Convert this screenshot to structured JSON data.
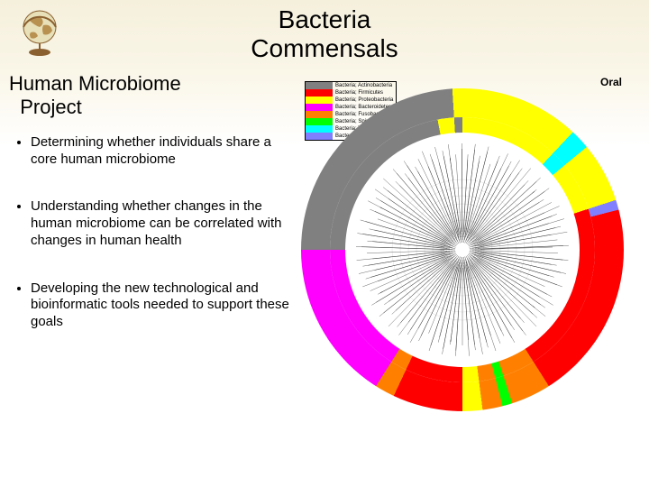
{
  "slide": {
    "title_line1": "Bacteria",
    "title_line2": "Commensals",
    "subtitle_line1": "Human Microbiome",
    "subtitle_line2": "Project",
    "bullets": [
      "Determining whether individuals share a core human microbiome",
      "Understanding whether changes in the human microbiome can be correlated with changes in human health",
      "Developing the new technological and bioinformatic tools needed to support these goals"
    ]
  },
  "chart": {
    "label": "Oral",
    "legend": [
      {
        "color": "#808080",
        "text": "Bacteria; Actinobacteria"
      },
      {
        "color": "#ff0000",
        "text": "Bacteria; Firmicutes"
      },
      {
        "color": "#ffff00",
        "text": "Bacteria; Proteobacteria"
      },
      {
        "color": "#ff00ff",
        "text": "Bacteria; Bacteroidetes"
      },
      {
        "color": "#ff8000",
        "text": "Bacteria; Fusobacteria"
      },
      {
        "color": "#00ff00",
        "text": "Bacteria; Spirochaetes"
      },
      {
        "color": "#00ffff",
        "text": "Bacteria; TM7"
      },
      {
        "color": "#8080ff",
        "text": "Bacteria; Tenericutes"
      }
    ],
    "outer_ring_segments": [
      {
        "color": "#808080",
        "percent": 24
      },
      {
        "color": "#ffff00",
        "percent": 13
      },
      {
        "color": "#00ffff",
        "percent": 2
      },
      {
        "color": "#ffff00",
        "percent": 6
      },
      {
        "color": "#8080ff",
        "percent": 1
      },
      {
        "color": "#ff0000",
        "percent": 20
      },
      {
        "color": "#ff8000",
        "percent": 4
      },
      {
        "color": "#00ff00",
        "percent": 1
      },
      {
        "color": "#ff8000",
        "percent": 2
      },
      {
        "color": "#ffff00",
        "percent": 2
      },
      {
        "color": "#ff0000",
        "percent": 7
      },
      {
        "color": "#ff8000",
        "percent": 2
      },
      {
        "color": "#ff00ff",
        "percent": 16
      }
    ],
    "inner_ring_segments": [
      {
        "color": "#808080",
        "percent": 22
      },
      {
        "color": "#ffff00",
        "percent": 2
      },
      {
        "color": "#808080",
        "percent": 1
      },
      {
        "color": "#ffff00",
        "percent": 12
      },
      {
        "color": "#00ffff",
        "percent": 2
      },
      {
        "color": "#ffff00",
        "percent": 6
      },
      {
        "color": "#ff0000",
        "percent": 21
      },
      {
        "color": "#ff8000",
        "percent": 4
      },
      {
        "color": "#00ff00",
        "percent": 1
      },
      {
        "color": "#ff8000",
        "percent": 2
      },
      {
        "color": "#ffff00",
        "percent": 2
      },
      {
        "color": "#ff0000",
        "percent": 7
      },
      {
        "color": "#ff8000",
        "percent": 2
      },
      {
        "color": "#ff00ff",
        "percent": 16
      }
    ],
    "tree_branches": 180
  },
  "globe": {
    "land_color": "#b89050",
    "ocean_color": "#e8e0b8",
    "stand_color": "#8b6030"
  }
}
